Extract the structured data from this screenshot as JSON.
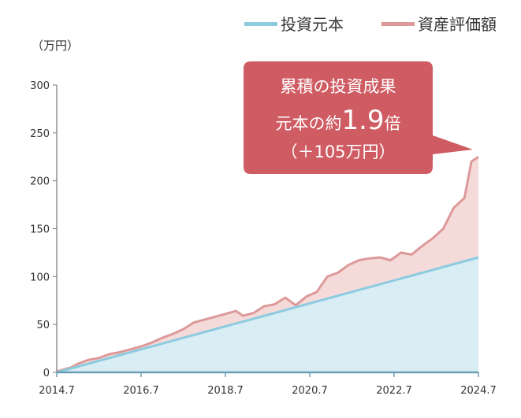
{
  "chart_data": {
    "type": "area",
    "unit_label": "（万円）",
    "x_ticks": [
      "2014.7",
      "2016.7",
      "2018.7",
      "2020.7",
      "2022.7",
      "2024.7"
    ],
    "y_ticks": [
      "0",
      "50",
      "100",
      "150",
      "200",
      "250",
      "300"
    ],
    "ylim": [
      0,
      300
    ],
    "xlim": [
      "2014.7",
      "2024.7"
    ],
    "grid": false,
    "legend_position": "top-right",
    "series": [
      {
        "name": "投資元本",
        "color": "#8ccbe0",
        "fill": "#d9edf4",
        "x": [
          "2014.7",
          "2024.7"
        ],
        "values": [
          0,
          120
        ]
      },
      {
        "name": "資産評価額",
        "color": "#dd9999",
        "fill": "#f5dada",
        "x": [
          "2014.7",
          "2014.11",
          "2015.1",
          "2015.4",
          "2015.7",
          "2015.10",
          "2016.1",
          "2016.4",
          "2016.7",
          "2016.10",
          "2017.1",
          "2017.4",
          "2017.7",
          "2017.10",
          "2018.1",
          "2018.4",
          "2018.7",
          "2018.10",
          "2018.12",
          "2019.3",
          "2019.6",
          "2019.9",
          "2019.12",
          "2020.3",
          "2020.6",
          "2020.9",
          "2020.12",
          "2021.3",
          "2021.6",
          "2021.9",
          "2021.12",
          "2022.3",
          "2022.6",
          "2022.9",
          "2022.12",
          "2023.3",
          "2023.6",
          "2023.9",
          "2023.12",
          "2024.3",
          "2024.5",
          "2024.7"
        ],
        "values": [
          1,
          5,
          9,
          13,
          15,
          19,
          21,
          24,
          27,
          31,
          36,
          40,
          45,
          52,
          55,
          58,
          61,
          64,
          59,
          62,
          69,
          71,
          78,
          70,
          79,
          84,
          100,
          104,
          112,
          117,
          119,
          120,
          117,
          125,
          123,
          132,
          140,
          150,
          172,
          182,
          220,
          225
        ]
      }
    ],
    "annotation": {
      "line1": "累積の投資成果",
      "line2_prefix": "元本の約",
      "line2_big": "1.9",
      "line2_suffix": "倍",
      "line3": "（＋105万円）",
      "color": "#cf5c63"
    }
  }
}
